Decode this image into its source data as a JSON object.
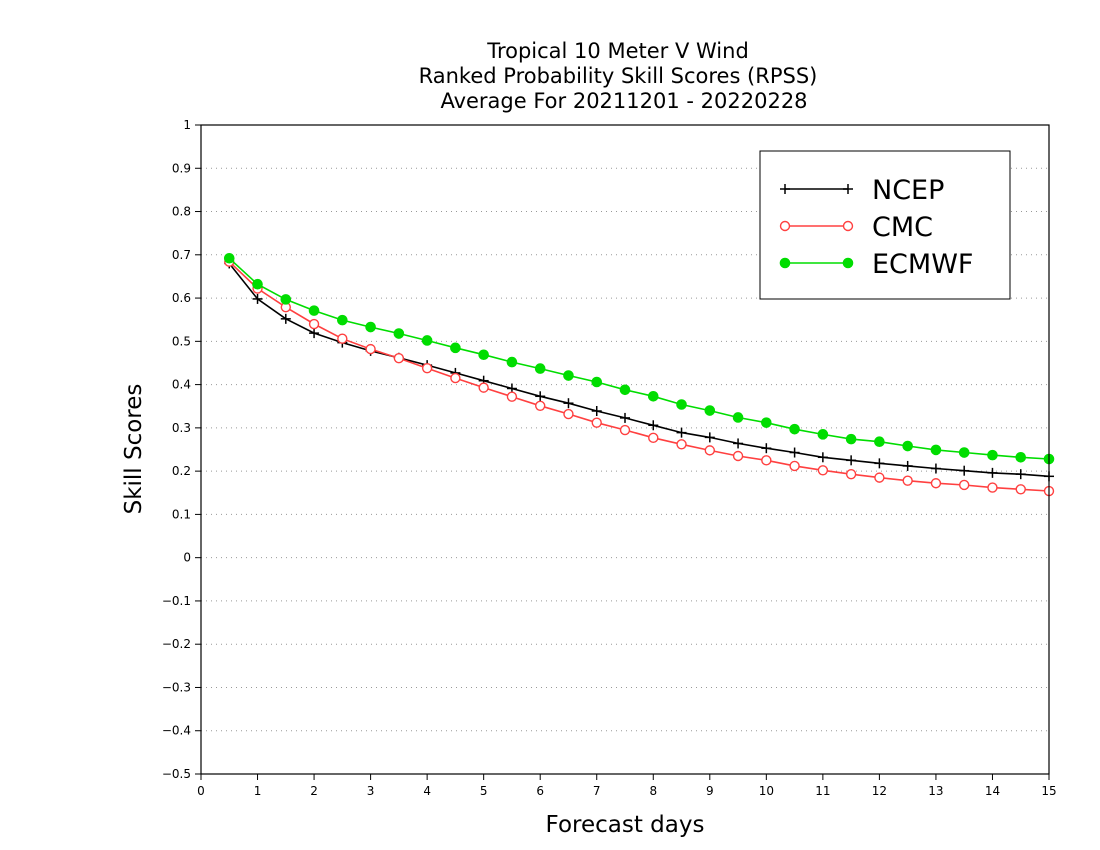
{
  "chart_data": {
    "type": "line",
    "title": [
      "Tropical 10 Meter V Wind",
      "Ranked Probability Skill Scores (RPSS)",
      "Average For 20211201 - 20220228"
    ],
    "xlabel": "Forecast days",
    "ylabel": "Skill Scores",
    "xlim": [
      0,
      15
    ],
    "ylim": [
      -0.5,
      1
    ],
    "xticks": [
      "0",
      "1",
      "2",
      "3",
      "4",
      "5",
      "6",
      "7",
      "8",
      "9",
      "10",
      "11",
      "12",
      "13",
      "14",
      "15"
    ],
    "yticks": [
      "−0.5",
      "−0.4",
      "−0.3",
      "−0.2",
      "−0.1",
      "0",
      "0.1",
      "0.2",
      "0.3",
      "0.4",
      "0.5",
      "0.6",
      "0.7",
      "0.8",
      "0.9",
      "1"
    ],
    "grid": "dotted horizontal",
    "legend_position": "top-right",
    "x": [
      0.5,
      1,
      1.5,
      2,
      2.5,
      3,
      3.5,
      4,
      4.5,
      5,
      5.5,
      6,
      6.5,
      7,
      7.5,
      8,
      8.5,
      9,
      9.5,
      10,
      10.5,
      11,
      11.5,
      12,
      12.5,
      13,
      13.5,
      14,
      14.5,
      15
    ],
    "series": [
      {
        "name": "NCEP",
        "color": "#000000",
        "marker": "plus",
        "values": [
          0.68,
          0.598,
          0.552,
          0.519,
          0.497,
          0.478,
          0.462,
          0.445,
          0.427,
          0.409,
          0.391,
          0.373,
          0.357,
          0.339,
          0.323,
          0.306,
          0.289,
          0.278,
          0.264,
          0.253,
          0.243,
          0.232,
          0.225,
          0.218,
          0.212,
          0.206,
          0.201,
          0.196,
          0.193,
          0.188
        ]
      },
      {
        "name": "CMC",
        "color": "#ff4040",
        "marker": "open-circle",
        "values": [
          0.684,
          0.622,
          0.579,
          0.54,
          0.506,
          0.482,
          0.461,
          0.438,
          0.415,
          0.393,
          0.372,
          0.351,
          0.332,
          0.312,
          0.295,
          0.277,
          0.262,
          0.248,
          0.235,
          0.225,
          0.212,
          0.202,
          0.193,
          0.185,
          0.178,
          0.172,
          0.168,
          0.162,
          0.158,
          0.154
        ]
      },
      {
        "name": "ECMWF",
        "color": "#00dd00",
        "marker": "filled-circle",
        "values": [
          0.692,
          0.632,
          0.597,
          0.571,
          0.549,
          0.533,
          0.518,
          0.502,
          0.485,
          0.469,
          0.452,
          0.437,
          0.421,
          0.406,
          0.388,
          0.373,
          0.354,
          0.34,
          0.324,
          0.312,
          0.297,
          0.285,
          0.274,
          0.268,
          0.258,
          0.249,
          0.243,
          0.237,
          0.232,
          0.228
        ]
      }
    ]
  }
}
